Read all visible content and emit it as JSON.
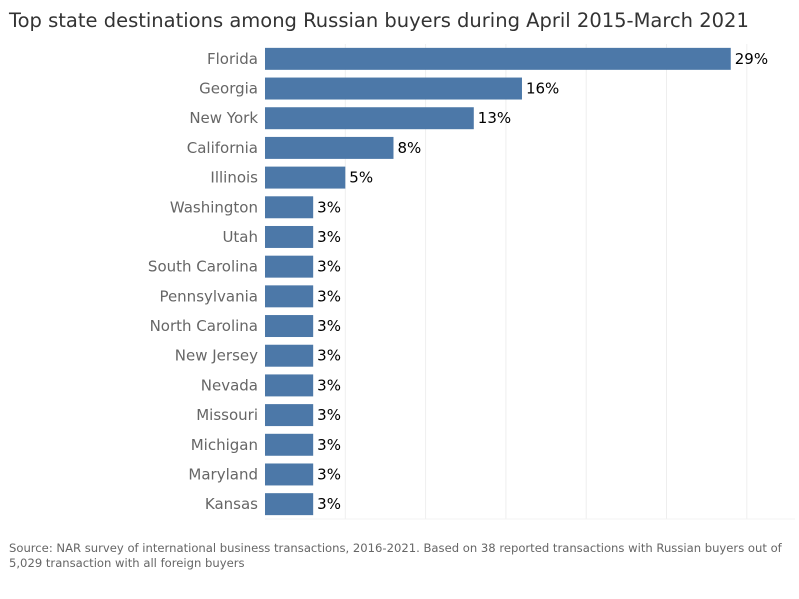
{
  "chart_data": {
    "type": "bar",
    "orientation": "horizontal",
    "title": "Top state destinations among Russian buyers during April 2015-March 2021",
    "categories": [
      "Florida",
      "Georgia",
      "New York",
      "California",
      "Illinois",
      "Washington",
      "Utah",
      "South Carolina",
      "Pennsylvania",
      "North Carolina",
      "New Jersey",
      "Nevada",
      "Missouri",
      "Michigan",
      "Maryland",
      "Kansas"
    ],
    "values": [
      29,
      16,
      13,
      8,
      5,
      3,
      3,
      3,
      3,
      3,
      3,
      3,
      3,
      3,
      3,
      3
    ],
    "value_labels": [
      "29%",
      "16%",
      "13%",
      "8%",
      "5%",
      "3%",
      "3%",
      "3%",
      "3%",
      "3%",
      "3%",
      "3%",
      "3%",
      "3%",
      "3%",
      "3%"
    ],
    "xlim": [
      0,
      33
    ],
    "grid": true,
    "bar_color": "#4c78a8",
    "source": "Source: NAR survey of international business transactions, 2016-2021. Based on 38 reported transactions with Russian buyers out of 5,029 transaction with all foreign buyers"
  }
}
